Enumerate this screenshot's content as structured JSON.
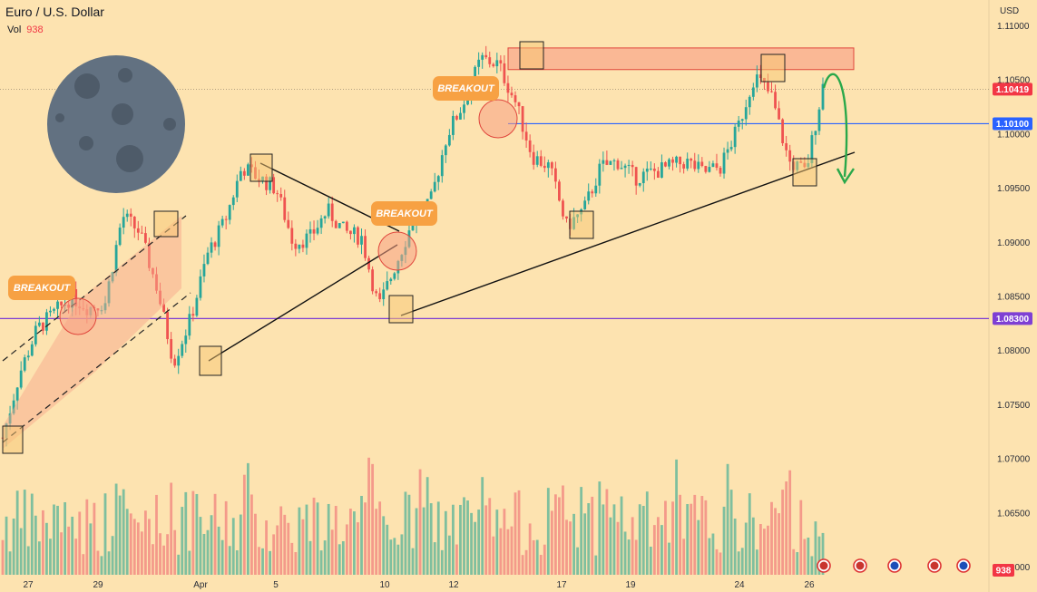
{
  "header": {
    "symbol_title": "Euro / U.S. Dollar",
    "volume_label": "Vol",
    "volume_value": "938"
  },
  "chart_data": {
    "type": "candlestick",
    "currency_label": "USD",
    "y_ticks": [
      "1.11000",
      "1.10500",
      "1.10000",
      "1.09500",
      "1.09000",
      "1.08500",
      "1.08000",
      "1.07500",
      "1.07000",
      "1.06500",
      "1.06000"
    ],
    "y_tick_values": [
      1.11,
      1.105,
      1.1,
      1.095,
      1.09,
      1.085,
      1.08,
      1.075,
      1.07,
      1.065,
      1.06
    ],
    "ylim": [
      1.06,
      1.1125
    ],
    "x_ticks": [
      "27",
      "29",
      "Apr",
      "5",
      "10",
      "12",
      "17",
      "19",
      "24",
      "26"
    ],
    "price_tags": [
      {
        "label": "1.10419",
        "value": 1.10419,
        "color": "#f23645"
      },
      {
        "label": "1.10100",
        "value": 1.101,
        "color": "#2962ff"
      },
      {
        "label": "1.08300",
        "value": 1.083,
        "color": "#7e3fd4"
      },
      {
        "label": "938",
        "value": 1.06,
        "color": "#f23645"
      }
    ],
    "horizontal_lines": [
      {
        "value": 1.101,
        "color": "#2962ff"
      },
      {
        "value": 1.083,
        "color": "#7e3fd4"
      }
    ],
    "resistance_zone": {
      "from": 1.106,
      "to": 1.108
    },
    "annotations": [
      "BREAKOUT",
      "BREAKOUT",
      "BREAKOUT"
    ],
    "colors": {
      "up": "#26a69a",
      "down": "#ef5350",
      "vol_up": "#7fbf9e",
      "vol_down": "#f49a8a",
      "zone": "#f8a98c"
    },
    "path_anchors": [
      1.072,
      1.078,
      1.082,
      1.0835,
      1.085,
      1.084,
      1.0845,
      1.0925,
      1.091,
      1.086,
      1.079,
      1.083,
      1.089,
      1.092,
      1.097,
      1.096,
      1.095,
      1.09,
      1.0905,
      1.093,
      1.091,
      1.0905,
      1.084,
      1.088,
      1.092,
      1.0935,
      1.1,
      1.103,
      1.107,
      1.1065,
      1.103,
      1.098,
      1.097,
      1.0915,
      1.093,
      1.097,
      1.0975,
      1.096,
      1.0965,
      1.097,
      1.0975,
      1.0965,
      1.097,
      1.1005,
      1.1055,
      1.1035,
      1.0975,
      1.0965,
      1.1045
    ]
  }
}
